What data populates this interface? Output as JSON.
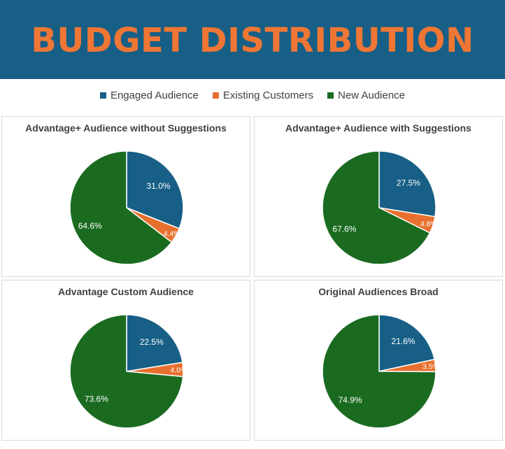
{
  "header": {
    "title": "BUDGET DISTRIBUTION"
  },
  "legend": [
    {
      "label": "Engaged Audience",
      "color": "#175f86"
    },
    {
      "label": "Existing Customers",
      "color": "#e8702f"
    },
    {
      "label": "New Audience",
      "color": "#1a6b20"
    }
  ],
  "chart_data": [
    {
      "type": "pie",
      "title": "Advantage+ Audience without Suggestions",
      "categories": [
        "Engaged Audience",
        "Existing Customers",
        "New Audience"
      ],
      "values": [
        31.0,
        4.4,
        64.6
      ],
      "labels": [
        "31.0%",
        "4.4%",
        "64.6%"
      ]
    },
    {
      "type": "pie",
      "title": "Advantage+ Audience with Suggestions",
      "categories": [
        "Engaged Audience",
        "Existing Customers",
        "New Audience"
      ],
      "values": [
        27.5,
        4.8,
        67.6
      ],
      "labels": [
        "27.5%",
        "4.8%",
        "67.6%"
      ]
    },
    {
      "type": "pie",
      "title": "Advantage Custom Audience",
      "categories": [
        "Engaged Audience",
        "Existing Customers",
        "New Audience"
      ],
      "values": [
        22.5,
        4.0,
        73.6
      ],
      "labels": [
        "22.5%",
        "4.0%",
        "73.6%"
      ]
    },
    {
      "type": "pie",
      "title": "Original Audiences Broad",
      "categories": [
        "Engaged Audience",
        "Existing Customers",
        "New Audience"
      ],
      "values": [
        21.6,
        3.5,
        74.9
      ],
      "labels": [
        "21.6%",
        "3.5%",
        "74.9%"
      ]
    }
  ]
}
